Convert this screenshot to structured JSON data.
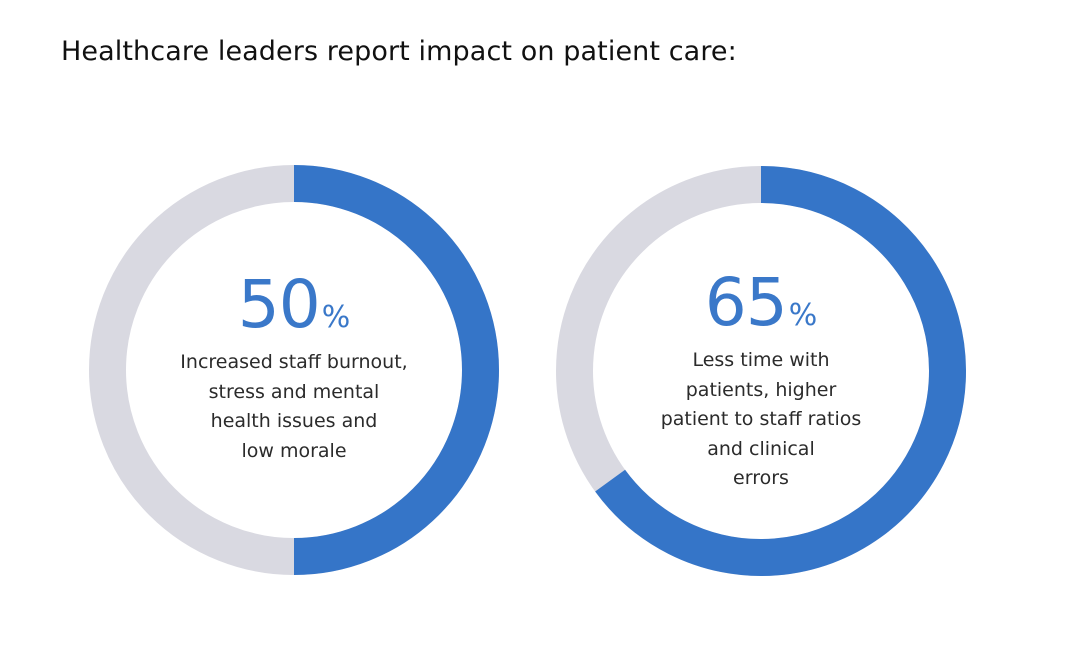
{
  "title": "Healthcare leaders report impact on patient care:",
  "colors": {
    "accent": "#3575c8",
    "track": "#d9d9e1",
    "text": "#2b2b2b"
  },
  "chart_data": {
    "type": "donut",
    "title": "Healthcare leaders report impact on patient care:",
    "items": [
      {
        "value": 50,
        "value_label": "50",
        "unit": "%",
        "description": "Increased staff burnout,\nstress and mental\nhealth issues and\nlow morale"
      },
      {
        "value": 65,
        "value_label": "65",
        "unit": "%",
        "description": "Less time with\npatients, higher\npatient to staff ratios\nand clinical\nerrors"
      }
    ],
    "max": 100
  }
}
